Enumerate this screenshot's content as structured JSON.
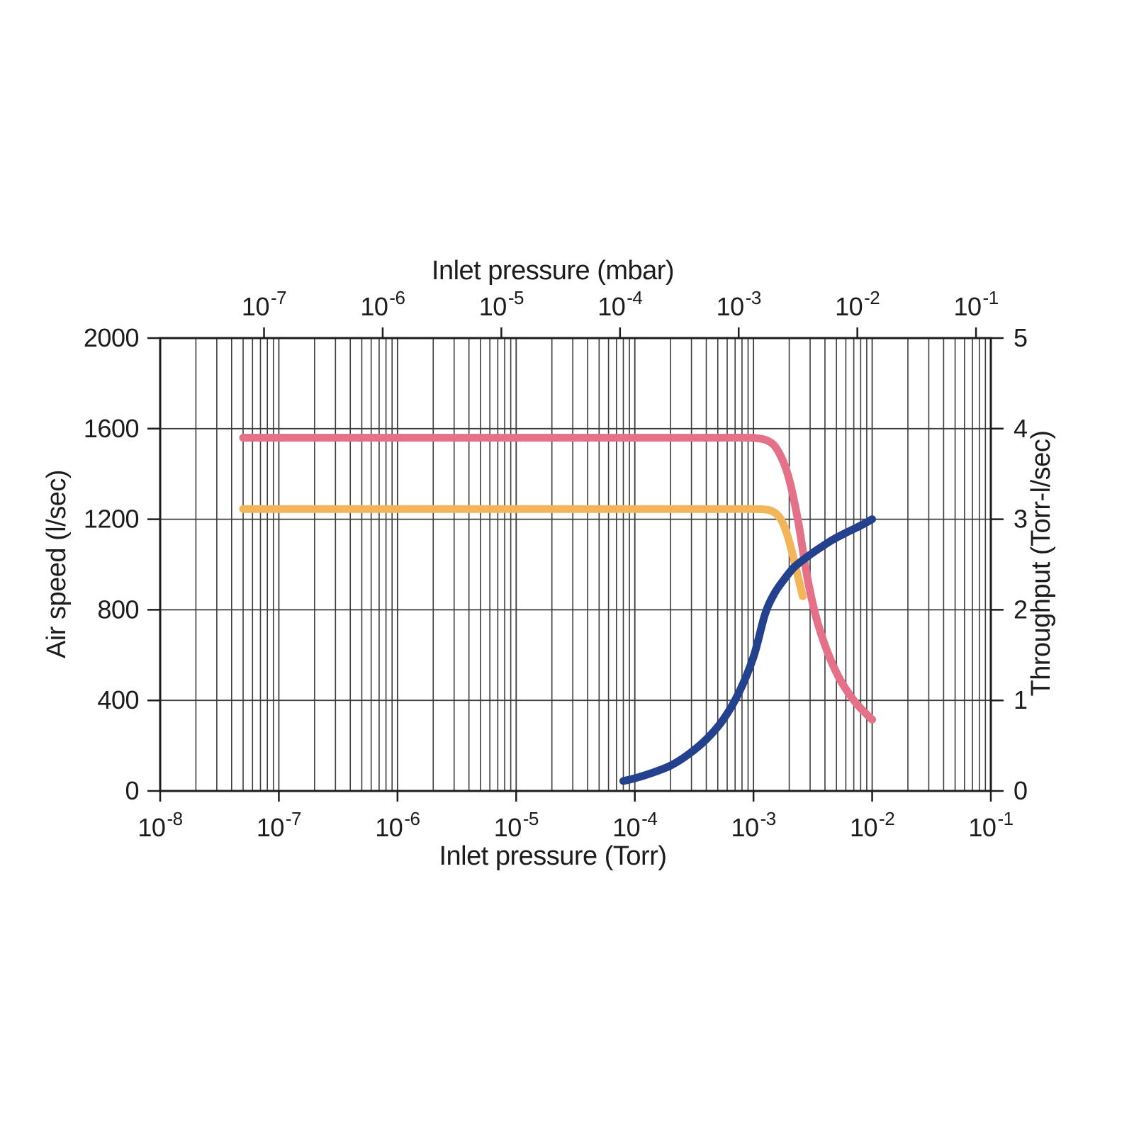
{
  "chart_data": {
    "type": "line",
    "title": "",
    "top_axis": {
      "title": "Inlet pressure (mbar)",
      "scale": "log",
      "unit": "mbar",
      "tick_base": "10",
      "tick_exponents": [
        -7,
        -6,
        -5,
        -4,
        -3,
        -2,
        -1
      ],
      "torr_per_mbar": 0.75006
    },
    "bottom_axis": {
      "title": "Inlet pressure (Torr)",
      "scale": "log",
      "unit": "Torr",
      "tick_base": "10",
      "tick_exponents": [
        -8,
        -7,
        -6,
        -5,
        -4,
        -3,
        -2,
        -1
      ],
      "range_torr": [
        1e-08,
        0.1
      ]
    },
    "left_axis": {
      "title": "Air speed (l/sec)",
      "range": [
        0,
        2000
      ],
      "ticks": [
        0,
        400,
        800,
        1200,
        1600,
        2000
      ]
    },
    "right_axis": {
      "title": "Throughput (Torr-l/sec)",
      "range": [
        0,
        5
      ],
      "ticks": [
        0,
        1,
        2,
        3,
        4,
        5
      ]
    },
    "grid": {
      "minor_subdivisions": [
        2,
        3,
        4,
        5,
        6,
        7,
        8,
        9
      ],
      "line_color": "#3c3c3c",
      "frame_color": "#1c1c1c"
    },
    "series": [
      {
        "name": "air-speed-lower-curve",
        "axis": "left",
        "color": "#f3b559",
        "points": [
          [
            5e-08,
            1245
          ],
          [
            1e-07,
            1245
          ],
          [
            1e-06,
            1245
          ],
          [
            1e-05,
            1245
          ],
          [
            0.0001,
            1245
          ],
          [
            0.0005,
            1245
          ],
          [
            0.001,
            1245
          ],
          [
            0.0013,
            1242
          ],
          [
            0.0015,
            1230
          ],
          [
            0.0017,
            1200
          ],
          [
            0.0019,
            1140
          ],
          [
            0.0021,
            1060
          ],
          [
            0.0023,
            975
          ],
          [
            0.00245,
            915
          ],
          [
            0.0026,
            860
          ]
        ]
      },
      {
        "name": "air-speed-upper-curve",
        "axis": "left",
        "color": "#e57189",
        "points": [
          [
            5e-08,
            1560
          ],
          [
            1e-07,
            1560
          ],
          [
            1e-06,
            1560
          ],
          [
            1e-05,
            1560
          ],
          [
            0.0001,
            1560
          ],
          [
            0.0005,
            1560
          ],
          [
            0.0009,
            1560
          ],
          [
            0.0011,
            1557
          ],
          [
            0.0013,
            1548
          ],
          [
            0.0015,
            1525
          ],
          [
            0.0017,
            1478
          ],
          [
            0.0019,
            1415
          ],
          [
            0.0021,
            1330
          ],
          [
            0.0024,
            1180
          ],
          [
            0.0027,
            1010
          ],
          [
            0.003,
            880
          ],
          [
            0.0034,
            760
          ],
          [
            0.0039,
            660
          ],
          [
            0.0045,
            575
          ],
          [
            0.0052,
            505
          ],
          [
            0.006,
            450
          ],
          [
            0.007,
            400
          ],
          [
            0.008,
            365
          ],
          [
            0.009,
            338
          ],
          [
            0.01,
            315
          ]
        ]
      },
      {
        "name": "throughput-curve",
        "axis": "right",
        "color": "#24418e",
        "points": [
          [
            8e-05,
            0.11
          ],
          [
            0.0001,
            0.14
          ],
          [
            0.00014,
            0.2
          ],
          [
            0.0002,
            0.28
          ],
          [
            0.00028,
            0.4
          ],
          [
            0.0004,
            0.57
          ],
          [
            0.00055,
            0.78
          ],
          [
            0.00075,
            1.08
          ],
          [
            0.001,
            1.48
          ],
          [
            0.00125,
            1.95
          ],
          [
            0.0015,
            2.18
          ],
          [
            0.0018,
            2.33
          ],
          [
            0.0022,
            2.47
          ],
          [
            0.0028,
            2.58
          ],
          [
            0.0036,
            2.68
          ],
          [
            0.0046,
            2.77
          ],
          [
            0.006,
            2.85
          ],
          [
            0.008,
            2.93
          ],
          [
            0.01,
            3.0
          ]
        ]
      }
    ]
  }
}
